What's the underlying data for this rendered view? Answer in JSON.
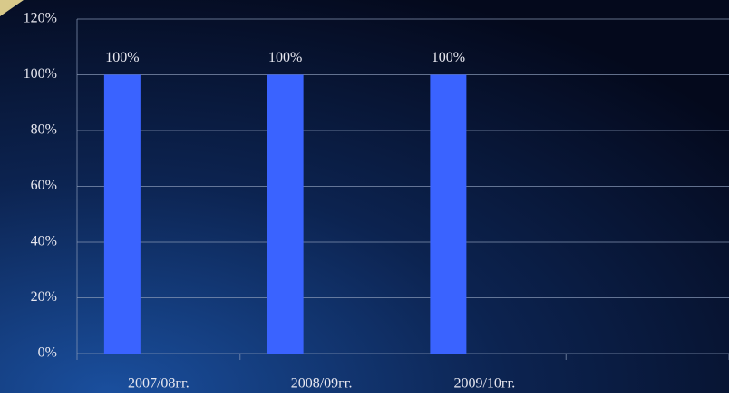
{
  "chart_data": {
    "type": "bar",
    "categories": [
      "2007/08гг.",
      "2008/09гг.",
      "2009/10гг.",
      null
    ],
    "values": [
      100,
      100,
      100,
      null
    ],
    "value_labels": [
      "100%",
      "100%",
      "100%",
      null
    ],
    "color": "#3a63ff",
    "ylim": [
      0,
      120
    ],
    "yticks": [
      {
        "value": 0,
        "label": "0%"
      },
      {
        "value": 20,
        "label": "20%"
      },
      {
        "value": 40,
        "label": "40%"
      },
      {
        "value": 60,
        "label": "60%"
      },
      {
        "value": 80,
        "label": "80%"
      },
      {
        "value": 100,
        "label": "100%"
      },
      {
        "value": 120,
        "label": "120%"
      }
    ],
    "grid": true
  }
}
